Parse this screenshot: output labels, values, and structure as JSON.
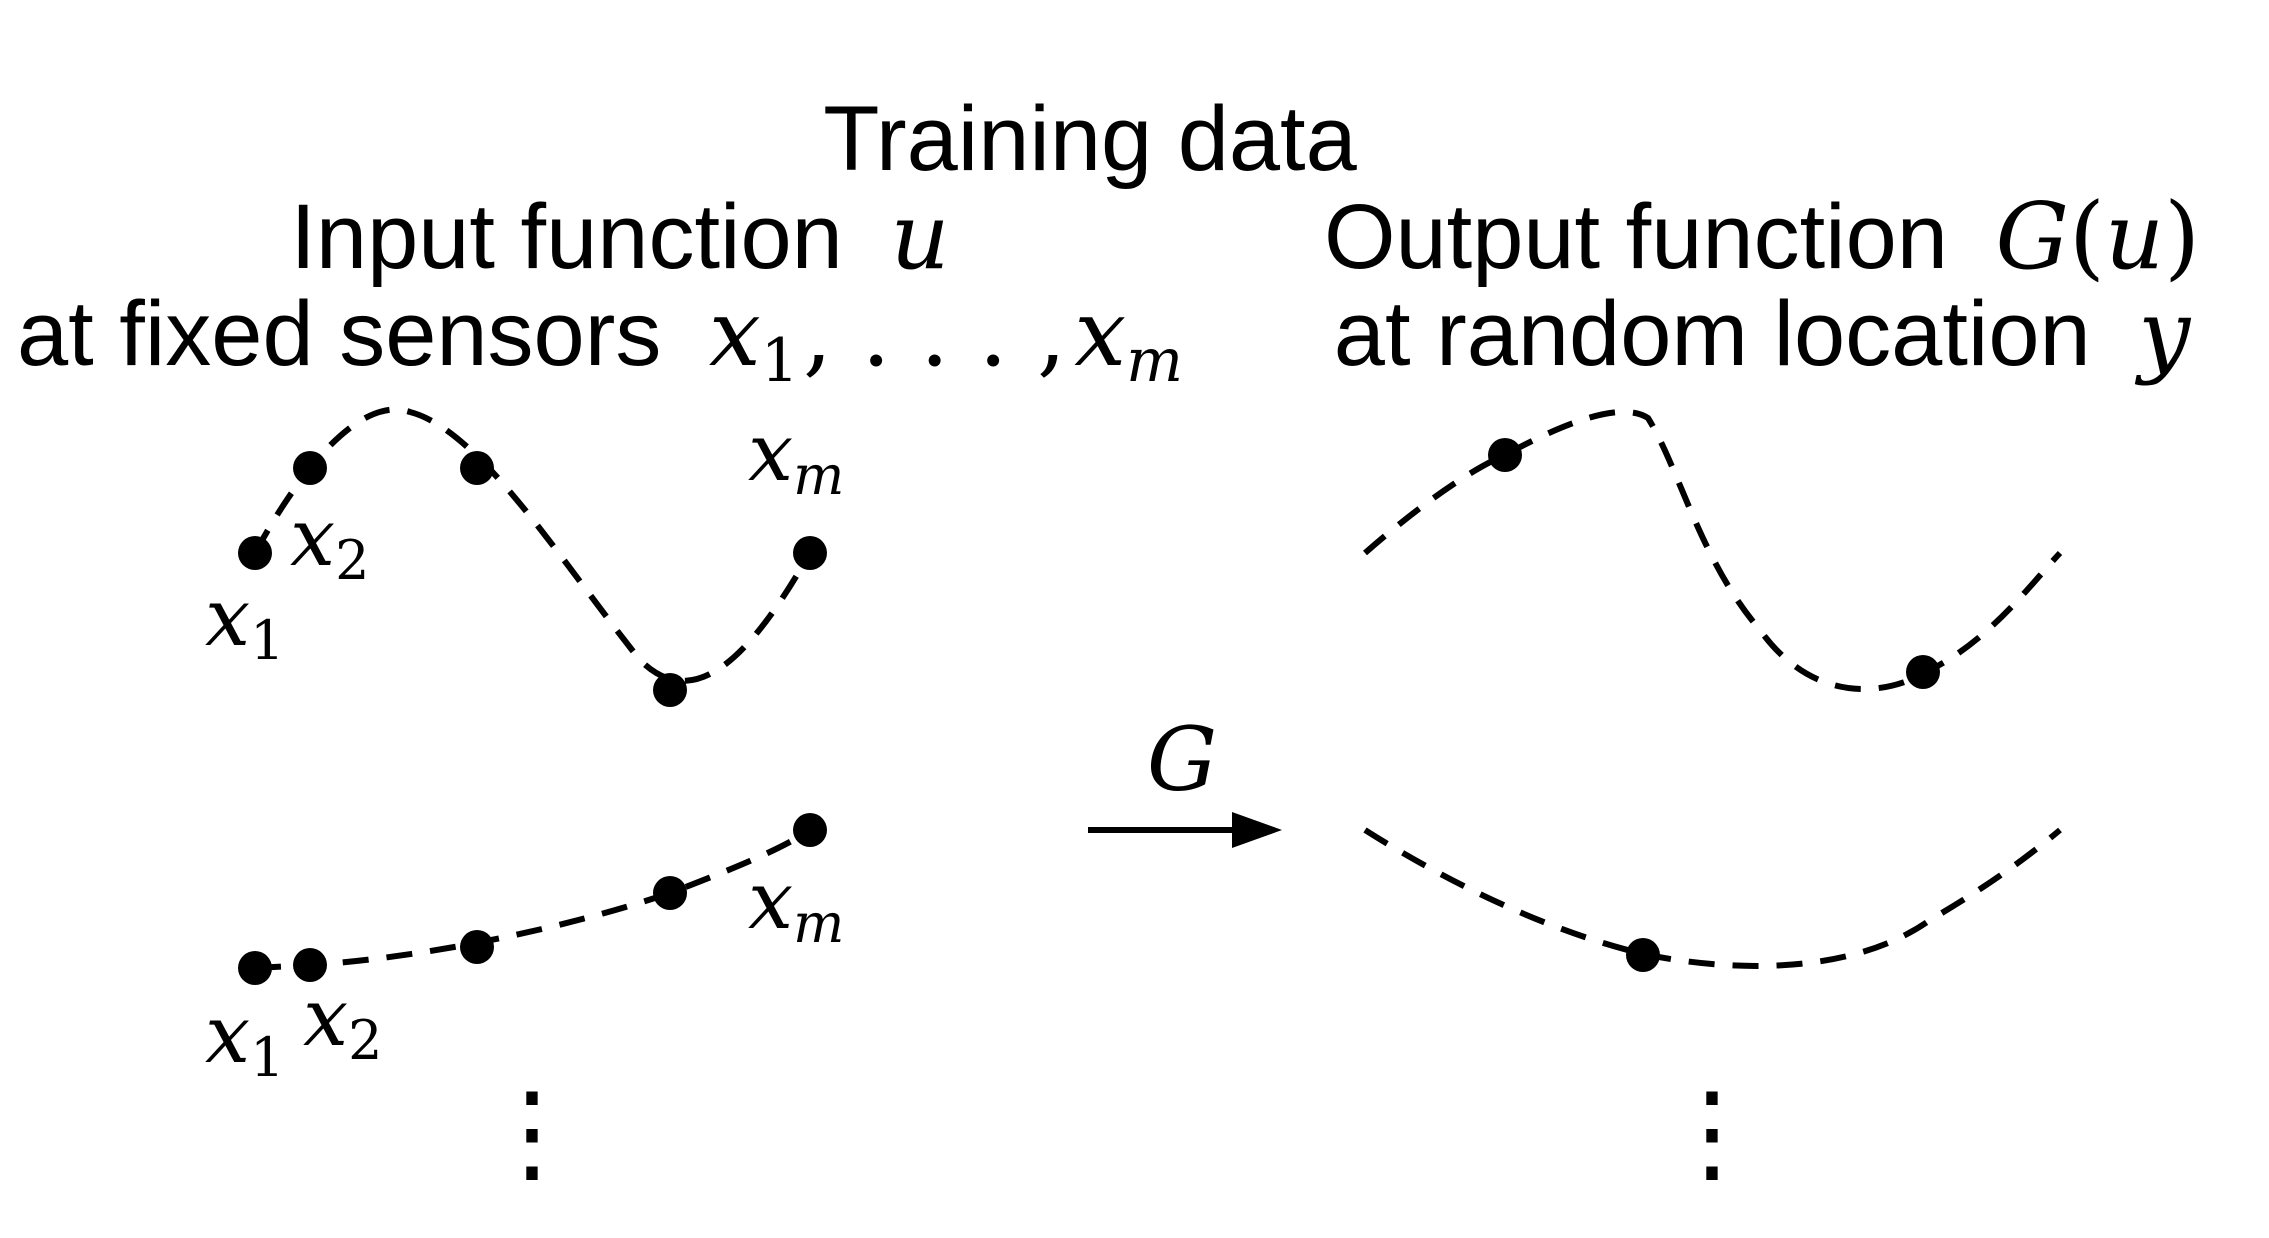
{
  "heading": {
    "title": "Training data",
    "left_line1": "Input function",
    "left_var": "u",
    "left_line2": "at fixed sensors",
    "sensor_first": "x",
    "sensor_first_sub": "1",
    "sensor_sep": ", . . . ,",
    "sensor_last": "x",
    "sensor_last_sub": "m",
    "right_line1": "Output function",
    "right_func": "G",
    "right_open": "(",
    "right_arg": "u",
    "right_close": ")",
    "right_line2": "at random location",
    "right_var": "y"
  },
  "operator": {
    "label": "G"
  },
  "input_examples": [
    {
      "labels": [
        {
          "base": "x",
          "sub": "1"
        },
        {
          "base": "x",
          "sub": "2"
        },
        {
          "base": "x",
          "sub": "m"
        }
      ]
    },
    {
      "labels": [
        {
          "base": "x",
          "sub": "1"
        },
        {
          "base": "x",
          "sub": "2"
        },
        {
          "base": "x",
          "sub": "m"
        }
      ]
    }
  ],
  "continuation": {
    "left": "⋮",
    "right": "⋮"
  }
}
